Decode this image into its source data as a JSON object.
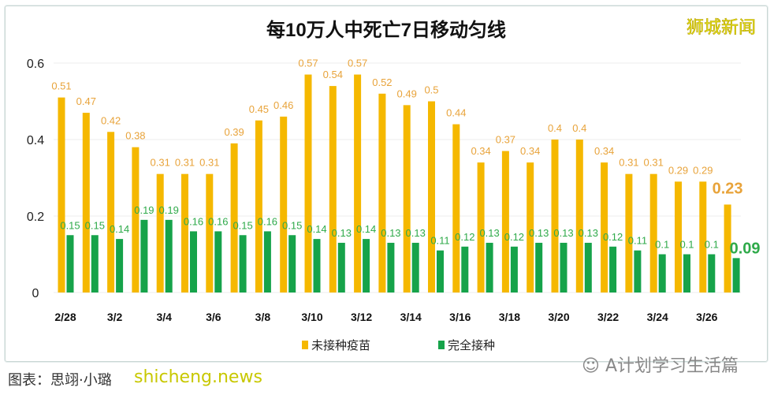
{
  "chart_data": {
    "type": "bar",
    "title": "每10万人中死亡7日移动匀线",
    "categories": [
      "2/28",
      "3/1",
      "3/2",
      "3/3",
      "3/4",
      "3/5",
      "3/6",
      "3/7",
      "3/8",
      "3/9",
      "3/10",
      "3/11",
      "3/12",
      "3/13",
      "3/14",
      "3/15",
      "3/16",
      "3/17",
      "3/18",
      "3/19",
      "3/20",
      "3/21",
      "3/22",
      "3/23",
      "3/24",
      "3/25",
      "3/26",
      "3/27"
    ],
    "tick_labels": [
      "2/28",
      "3/2",
      "3/4",
      "3/6",
      "3/8",
      "3/10",
      "3/12",
      "3/14",
      "3/16",
      "3/18",
      "3/20",
      "3/22",
      "3/24",
      "3/26"
    ],
    "series": [
      {
        "name": "未接种疫苗",
        "color": "#f5b800",
        "label_color": "#e8a33a",
        "values": [
          0.51,
          0.47,
          0.42,
          0.38,
          0.31,
          0.31,
          0.31,
          0.39,
          0.45,
          0.46,
          0.57,
          0.54,
          0.57,
          0.52,
          0.49,
          0.5,
          0.44,
          0.34,
          0.37,
          0.34,
          0.4,
          0.4,
          0.34,
          0.31,
          0.31,
          0.29,
          0.29,
          0.23
        ]
      },
      {
        "name": "完全接种",
        "color": "#16a34a",
        "label_color": "#2faa4a",
        "values": [
          0.15,
          0.15,
          0.14,
          0.19,
          0.19,
          0.16,
          0.16,
          0.15,
          0.16,
          0.15,
          0.14,
          0.13,
          0.14,
          0.13,
          0.13,
          0.11,
          0.12,
          0.13,
          0.12,
          0.13,
          0.13,
          0.13,
          0.12,
          0.11,
          0.1,
          0.1,
          0.1,
          0.09
        ]
      }
    ],
    "yticks": [
      "0",
      "0.2",
      "0.4",
      "0.6"
    ],
    "ylim": [
      0,
      0.6
    ],
    "grid": true,
    "legend": "bottom"
  },
  "logo": "狮城新闻",
  "footer": {
    "credit": "图表：思翊·小璐",
    "site": "shicheng.news",
    "wechat": "A计划学习生活篇"
  }
}
